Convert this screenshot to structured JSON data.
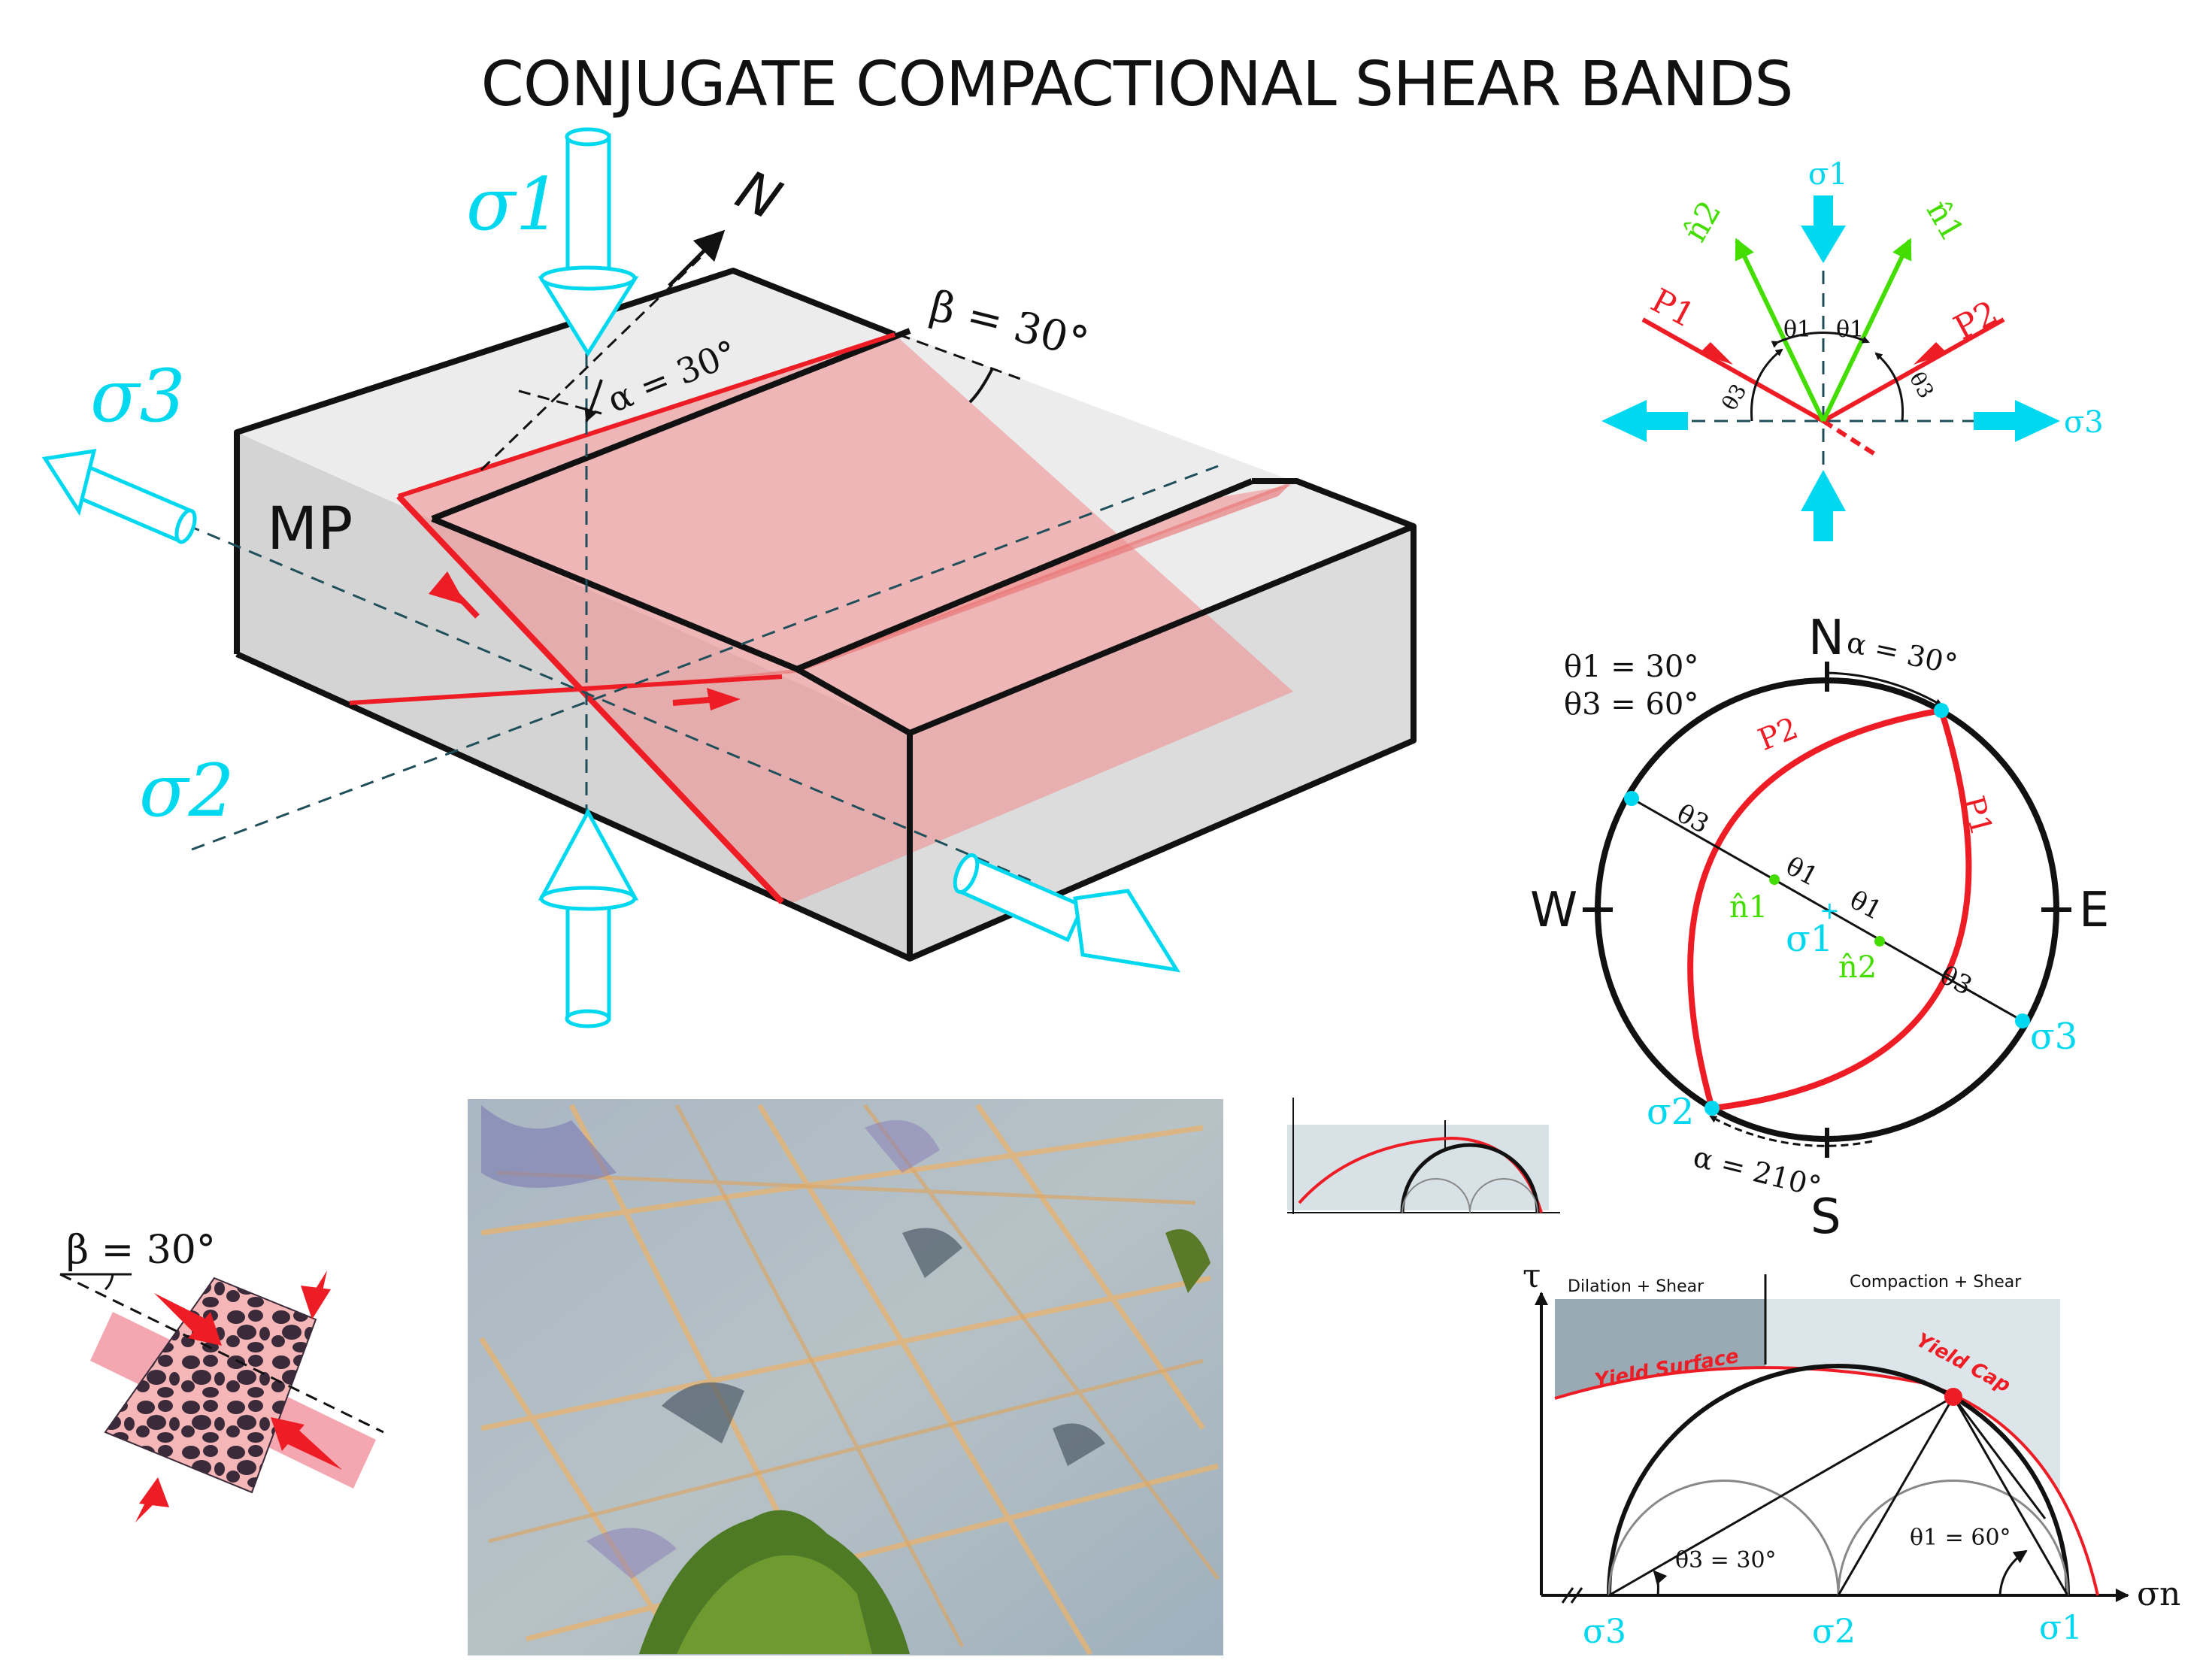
{
  "title": "CONJUGATE COMPACTIONAL SHEAR BANDS",
  "block": {
    "label_mp": "MP",
    "north": "N",
    "alpha": "α = 30°",
    "beta": "β = 30°",
    "sigma1": "σ1",
    "sigma2": "σ2",
    "sigma3": "σ3"
  },
  "stress_schematic": {
    "sigma1": "σ1",
    "sigma3": "σ3",
    "n1": "n̂1",
    "n2": "n̂2",
    "p1": "P1",
    "p2": "P2",
    "theta1_left": "θ1",
    "theta1_right": "θ1",
    "theta3_left": "θ3",
    "theta3_right": "θ3"
  },
  "stereonet": {
    "north": "N",
    "south": "S",
    "east": "E",
    "west": "W",
    "theta_eq1": "θ1 = 30°",
    "theta_eq3": "θ3 = 60°",
    "alpha_top": "α = 30°",
    "alpha_bottom": "α = 210°",
    "p1": "P1",
    "p2": "P2",
    "n1": "n̂1",
    "n2": "n̂2",
    "theta3_a": "θ3",
    "theta3_b": "θ3",
    "theta1_a": "θ1",
    "theta1_b": "θ1",
    "sigma1": "σ1",
    "sigma2": "σ2",
    "sigma3": "σ3"
  },
  "sample": {
    "beta": "β = 30°"
  },
  "mohr": {
    "tau": "τ",
    "sigma_n": "σn",
    "dilation": "Dilation + Shear",
    "compaction": "Compaction + Shear",
    "yield_surface": "Yield  Surface",
    "yield_cap": "Yield  Cap",
    "theta3": "θ3 = 30°",
    "theta1": "θ1 = 60°",
    "sigma3": "σ3",
    "sigma2": "σ2",
    "sigma1": "σ1"
  },
  "colors": {
    "stress_arrow": "#00d8f0",
    "shear_band": "#ee1c25",
    "normal_vector": "#44dd00"
  }
}
